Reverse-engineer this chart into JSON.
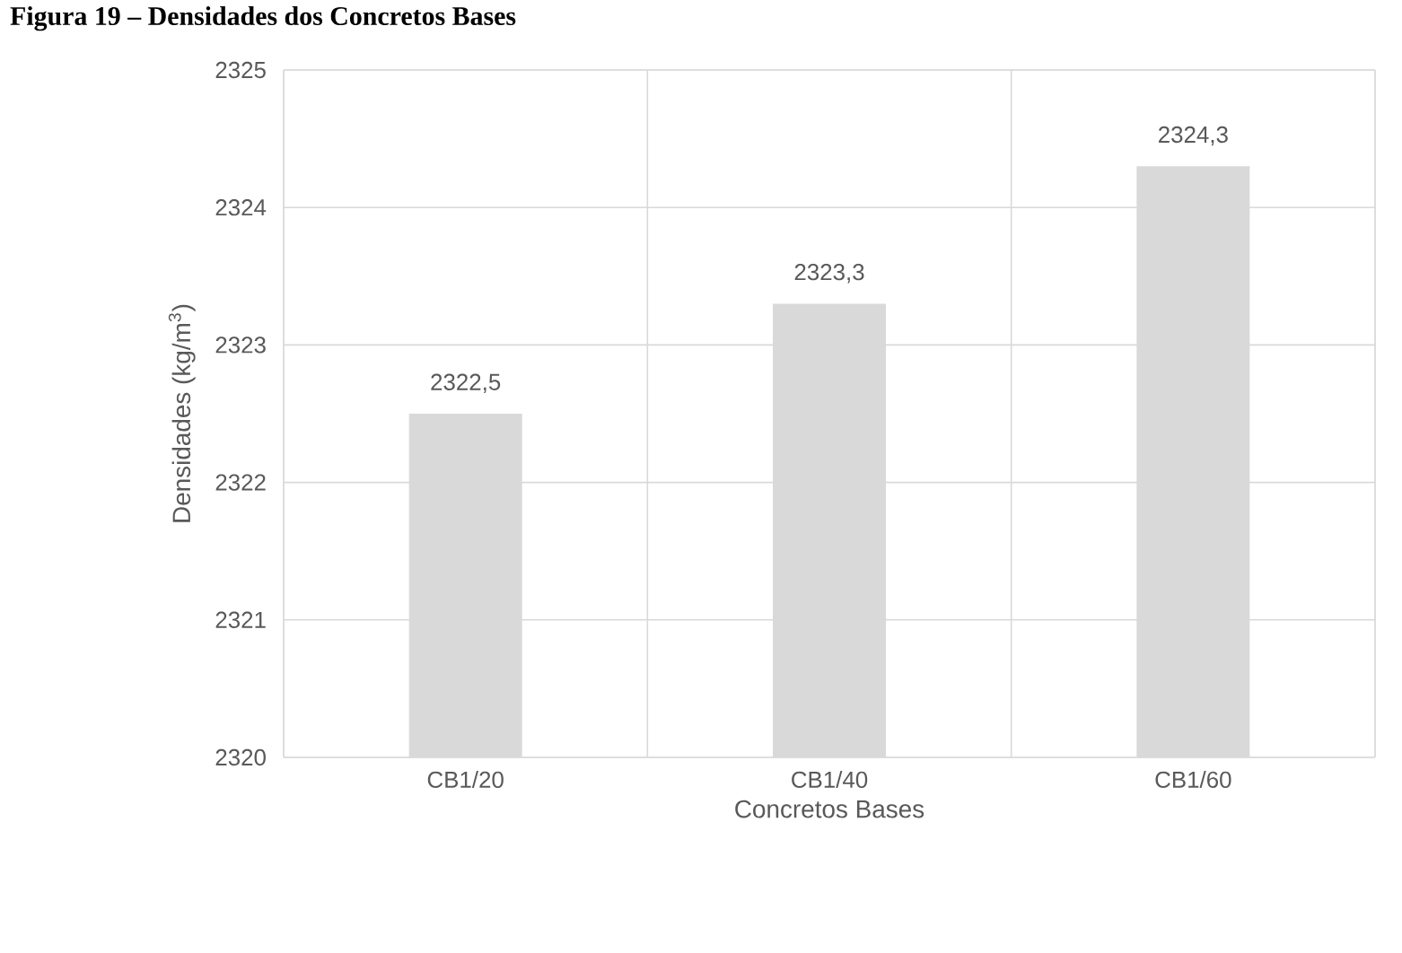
{
  "chart_data": {
    "type": "bar",
    "title": "Figura 19 – Densidades dos Concretos Bases",
    "xlabel": "Concretos Bases",
    "ylabel": "Densidades (kg/m$^{3}$)",
    "categories": [
      "CB1/20",
      "CB1/40",
      "CB1/60"
    ],
    "values": [
      2322.5,
      2323.3,
      2324.3
    ],
    "value_labels": [
      "2322,5",
      "2323,3",
      "2324,3"
    ],
    "color": "#d9d9d9",
    "ylim": [
      2320,
      2325
    ],
    "yticks": [
      2320,
      2321,
      2322,
      2323,
      2324,
      2325
    ],
    "grid": true
  }
}
